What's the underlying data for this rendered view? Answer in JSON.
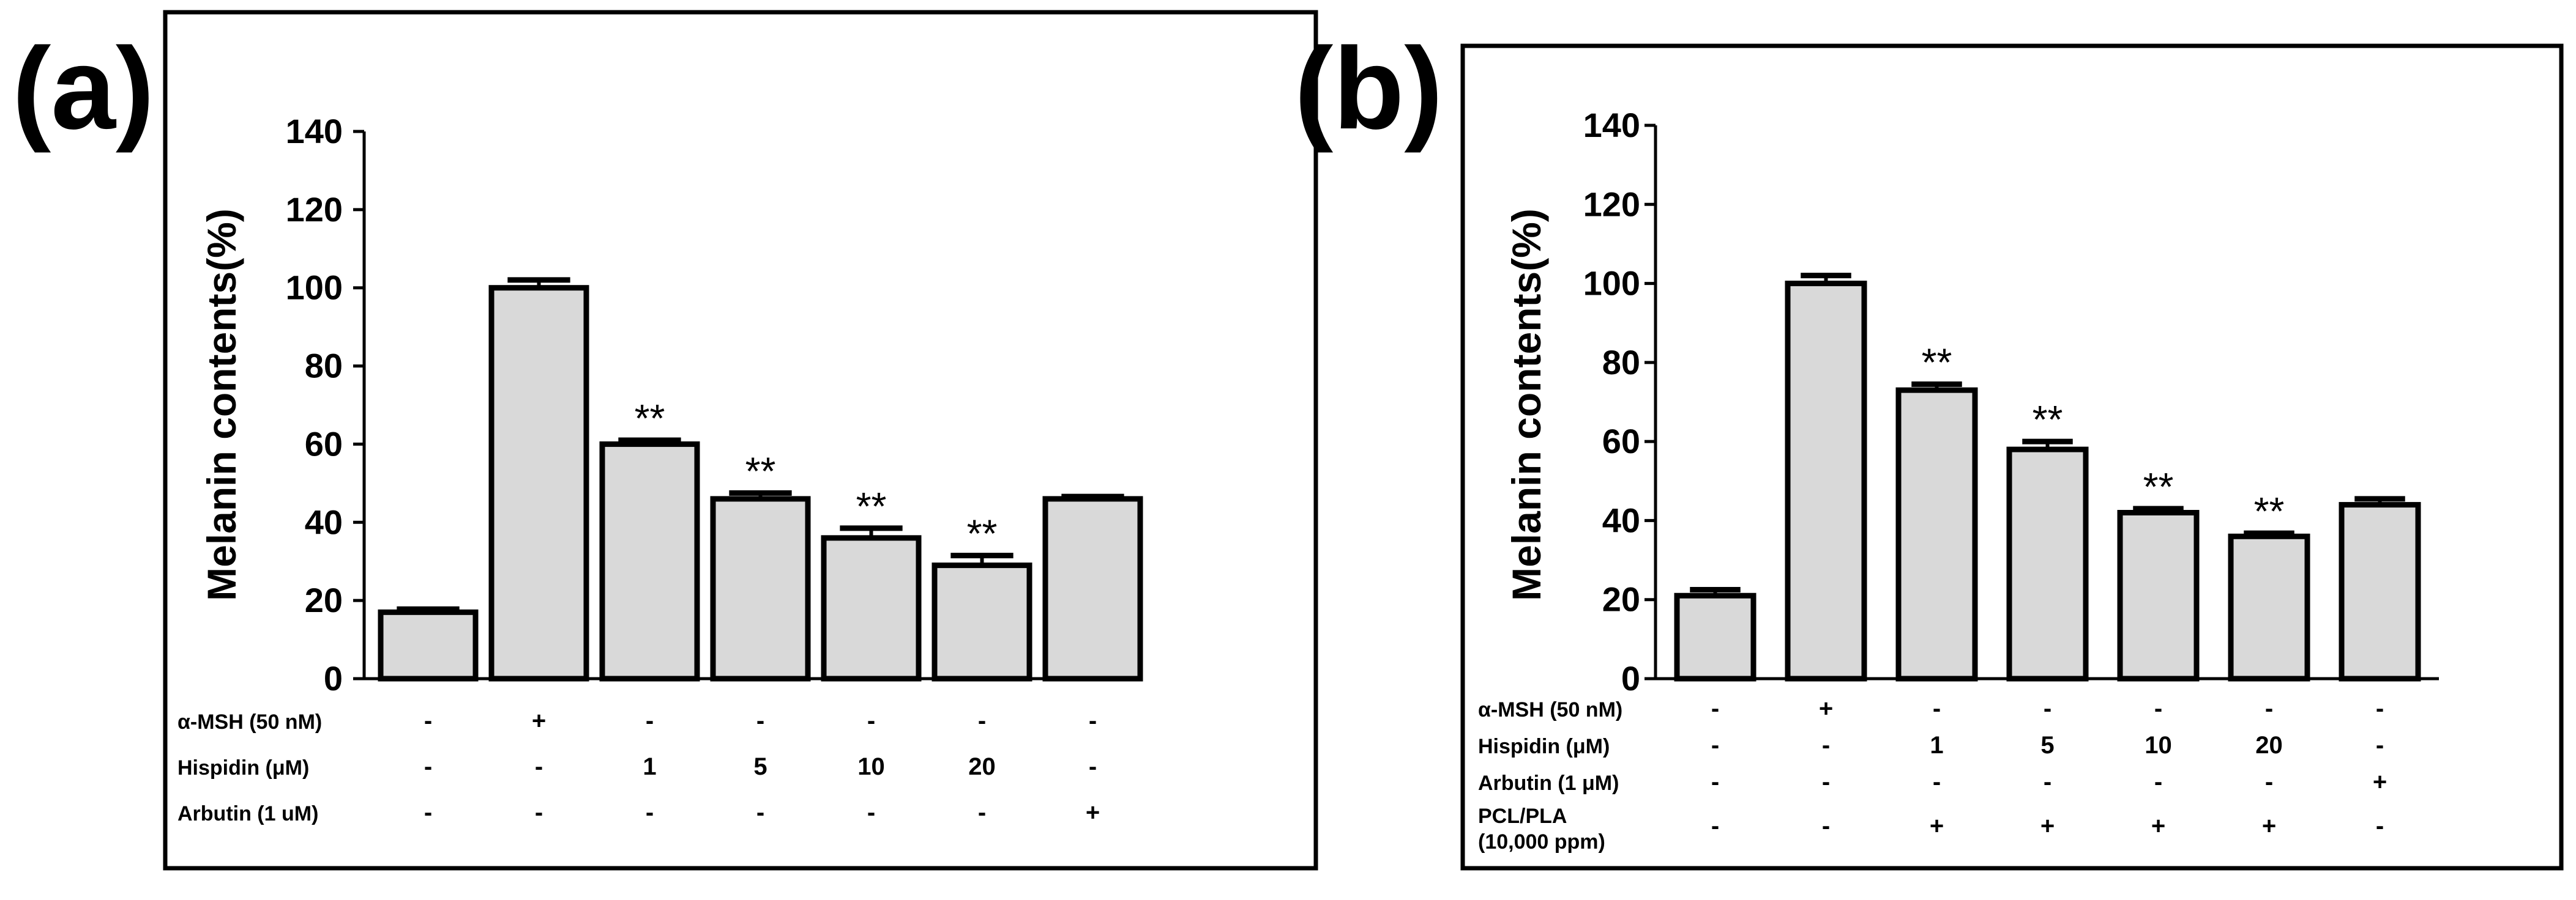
{
  "chart_data": [
    {
      "type": "bar",
      "panel_label": "(a)",
      "ylabel": "Melanin contents(%)",
      "ylim": [
        0,
        140
      ],
      "yticks": [
        "0",
        "20",
        "40",
        "60",
        "80",
        "100",
        "120",
        "140"
      ],
      "ytick_values": [
        0,
        20,
        40,
        60,
        80,
        100,
        120,
        140
      ],
      "values": [
        17,
        100,
        60,
        46,
        36,
        29,
        46
      ],
      "errors": [
        0.8,
        2.0,
        1.0,
        1.5,
        2.5,
        2.5,
        0.6
      ],
      "annotations": [
        "",
        "",
        "**",
        "**",
        "**",
        "**",
        ""
      ],
      "condition_rows": [
        {
          "label": "α-MSH (50 nM)",
          "values": [
            "-",
            "+",
            "-",
            "-",
            "-",
            "-",
            "-"
          ]
        },
        {
          "label": "Hispidin (μM)",
          "values": [
            "-",
            "-",
            "1",
            "5",
            "10",
            "20",
            "-"
          ]
        },
        {
          "label": "Arbutin (1 uM)",
          "values": [
            "-",
            "-",
            "-",
            "-",
            "-",
            "-",
            "+"
          ]
        }
      ]
    },
    {
      "type": "bar",
      "panel_label": "(b)",
      "ylabel": "Melanin contents(%)",
      "ylim": [
        0,
        140
      ],
      "yticks": [
        "0",
        "20",
        "40",
        "60",
        "80",
        "100",
        "120",
        "140"
      ],
      "ytick_values": [
        0,
        20,
        40,
        60,
        80,
        100,
        120,
        140
      ],
      "values": [
        21,
        100,
        73,
        58,
        42,
        36,
        44
      ],
      "errors": [
        1.5,
        2.0,
        1.5,
        2.0,
        1.0,
        0.8,
        1.5
      ],
      "annotations": [
        "",
        "",
        "**",
        "**",
        "**",
        "**",
        ""
      ],
      "condition_rows": [
        {
          "label": "α-MSH (50 nM)",
          "values": [
            "-",
            "+",
            "-",
            "-",
            "-",
            "-",
            "-"
          ]
        },
        {
          "label": "Hispidin (μM)",
          "values": [
            "-",
            "-",
            "1",
            "5",
            "10",
            "20",
            "-"
          ]
        },
        {
          "label": "Arbutin (1 μM)",
          "values": [
            "-",
            "-",
            "-",
            "-",
            "-",
            "-",
            "+"
          ]
        },
        {
          "label": "PCL/PLA",
          "label_line2": "(10,000 ppm)",
          "values": [
            "-",
            "-",
            "+",
            "+",
            "+",
            "+",
            "-"
          ]
        }
      ]
    }
  ]
}
